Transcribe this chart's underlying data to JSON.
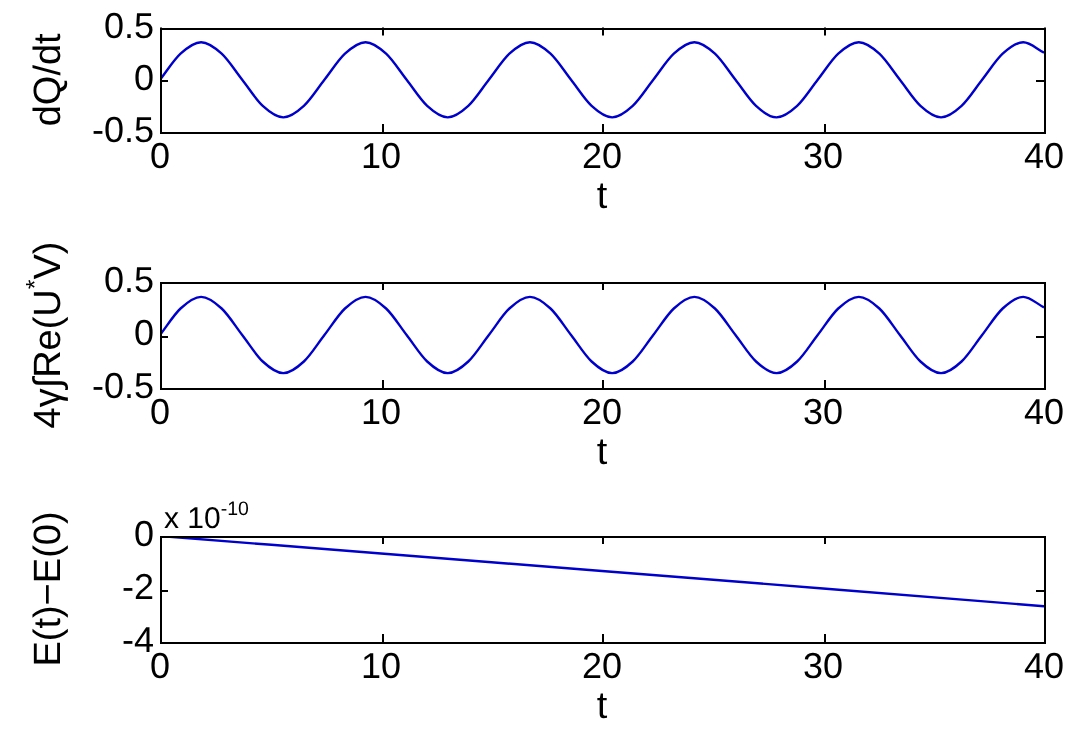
{
  "chart_data": [
    {
      "type": "line",
      "xlabel": "t",
      "ylabel": "dQ/dt",
      "xlim": [
        0,
        40
      ],
      "ylim": [
        -0.5,
        0.5
      ],
      "xticks": [
        0,
        10,
        20,
        30,
        40
      ],
      "yticks": [
        -0.5,
        0,
        0.5
      ],
      "grid": false,
      "legend": false,
      "marker": "none",
      "x": [
        0,
        0.93,
        1.86,
        2.79,
        3.72,
        4.65,
        5.58,
        6.51,
        7.44,
        8.37,
        9.3,
        10.23,
        11.16,
        12.09,
        13.02,
        13.95,
        14.88,
        15.81,
        16.74,
        17.67,
        18.6,
        19.53,
        20.46,
        21.39,
        22.32,
        23.25,
        24.18,
        25.11,
        26.04,
        26.97,
        27.9,
        28.83,
        29.76,
        30.69,
        31.62,
        32.55,
        33.48,
        34.41,
        35.34,
        36.27,
        37.2,
        38.13,
        39.06,
        40
      ],
      "series": [
        {
          "color": "#0000cc",
          "values": [
            0,
            0.25,
            0.36,
            0.25,
            0,
            -0.25,
            -0.36,
            -0.25,
            0,
            0.25,
            0.36,
            0.25,
            0,
            -0.25,
            -0.36,
            -0.25,
            0,
            0.25,
            0.36,
            0.25,
            0,
            -0.25,
            -0.36,
            -0.25,
            0,
            0.25,
            0.36,
            0.25,
            0,
            -0.25,
            -0.36,
            -0.25,
            0,
            0.25,
            0.36,
            0.25,
            0,
            -0.25,
            -0.36,
            -0.25,
            0,
            0.25,
            0.36,
            0.26
          ]
        }
      ]
    },
    {
      "type": "line",
      "xlabel": "t",
      "ylabel": "4γ∫Re(U$^{*}$V)",
      "xlim": [
        0,
        40
      ],
      "ylim": [
        -0.5,
        0.5
      ],
      "xticks": [
        0,
        10,
        20,
        30,
        40
      ],
      "yticks": [
        -0.5,
        0,
        0.5
      ],
      "grid": false,
      "legend": false,
      "marker": "none",
      "x": [
        0,
        0.93,
        1.86,
        2.79,
        3.72,
        4.65,
        5.58,
        6.51,
        7.44,
        8.37,
        9.3,
        10.23,
        11.16,
        12.09,
        13.02,
        13.95,
        14.88,
        15.81,
        16.74,
        17.67,
        18.6,
        19.53,
        20.46,
        21.39,
        22.32,
        23.25,
        24.18,
        25.11,
        26.04,
        26.97,
        27.9,
        28.83,
        29.76,
        30.69,
        31.62,
        32.55,
        33.48,
        34.41,
        35.34,
        36.27,
        37.2,
        38.13,
        39.06,
        40
      ],
      "series": [
        {
          "color": "#0000cc",
          "values": [
            0,
            0.25,
            0.36,
            0.25,
            0,
            -0.25,
            -0.36,
            -0.25,
            0,
            0.25,
            0.36,
            0.25,
            0,
            -0.25,
            -0.36,
            -0.25,
            0,
            0.25,
            0.36,
            0.25,
            0,
            -0.25,
            -0.36,
            -0.25,
            0,
            0.25,
            0.36,
            0.25,
            0,
            -0.25,
            -0.36,
            -0.25,
            0,
            0.25,
            0.36,
            0.25,
            0,
            -0.25,
            -0.36,
            -0.25,
            0,
            0.25,
            0.36,
            0.26
          ]
        }
      ]
    },
    {
      "type": "line",
      "xlabel": "t",
      "ylabel": "E(t)−E(0)",
      "xlim": [
        0,
        40
      ],
      "ylim": [
        -4,
        0
      ],
      "xticks": [
        0,
        10,
        20,
        30,
        40
      ],
      "yticks": [
        -4,
        -2,
        0
      ],
      "grid": false,
      "legend": false,
      "marker": "none",
      "annotations": [
        "x 10$^{-10}$"
      ],
      "x": [
        0,
        10,
        20,
        30,
        40
      ],
      "series": [
        {
          "color": "#0000cc",
          "values": [
            0,
            -0.66,
            -1.32,
            -1.98,
            -2.65
          ]
        }
      ]
    }
  ]
}
